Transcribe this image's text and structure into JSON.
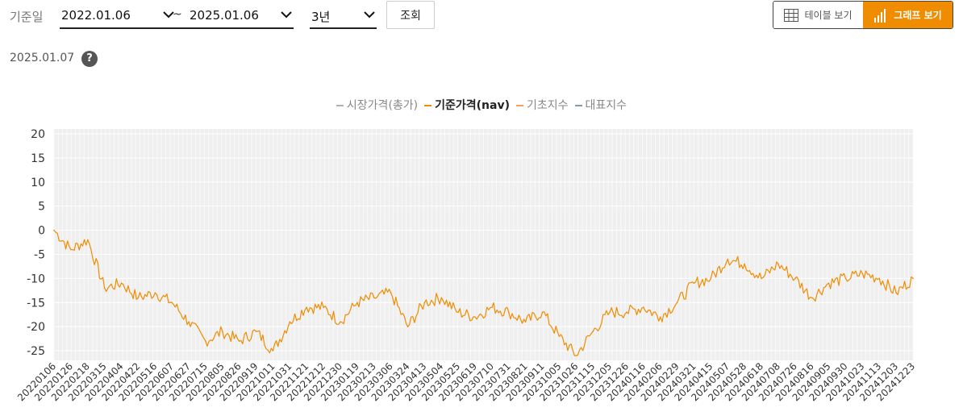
{
  "filter": {
    "base_date_label": "기준일",
    "start_date": "2022.01.06",
    "tilde": "~",
    "end_date": "2025.01.06",
    "period": "3년",
    "search_label": "조회"
  },
  "view_toggle": {
    "table_label": "테이블 보기",
    "graph_label": "그래프 보기",
    "active": "graph",
    "active_color": "#f08c00"
  },
  "as_of_date": "2025.01.07",
  "help_symbol": "?",
  "chart_data": {
    "type": "line",
    "title": "",
    "xlabel": "",
    "ylabel": "",
    "ylim": [
      -27,
      21
    ],
    "yticks": [
      20,
      15,
      10,
      5,
      0,
      -5,
      -10,
      -15,
      -20,
      -25
    ],
    "grid": true,
    "legend_position": "top-center",
    "legend": [
      {
        "name": "시장가격(총가)",
        "color": "#b0b0b0",
        "active": false
      },
      {
        "name": "기준가격(nav)",
        "color": "#f08c00",
        "active": true
      },
      {
        "name": "기초지수",
        "color": "#f0a060",
        "active": false
      },
      {
        "name": "대표지수",
        "color": "#8898a8",
        "active": false
      }
    ],
    "x_tick_labels": [
      "20220106",
      "20220126",
      "20220218",
      "20220315",
      "20220404",
      "20220422",
      "20220516",
      "20220607",
      "20220627",
      "20220715",
      "20220805",
      "20220826",
      "20220919",
      "20221011",
      "20221031",
      "20221121",
      "20221212",
      "20221230",
      "20230119",
      "20230213",
      "20230306",
      "20230324",
      "20230413",
      "20230504",
      "20230525",
      "20230619",
      "20230710",
      "20230731",
      "20230821",
      "20230911",
      "20231005",
      "20231026",
      "20231115",
      "20231205",
      "20231226",
      "20240116",
      "20240206",
      "20240229",
      "20240321",
      "20240415",
      "20240507",
      "20240528",
      "20240618",
      "20240708",
      "20240726",
      "20240816",
      "20240905",
      "20240930",
      "20241023",
      "20241113",
      "20241203",
      "20241223"
    ],
    "series": [
      {
        "name": "기준가격(nav)",
        "color": "#f08c00",
        "x": [
          "20220106",
          "20220126",
          "20220218",
          "20220315",
          "20220404",
          "20220422",
          "20220516",
          "20220607",
          "20220627",
          "20220715",
          "20220805",
          "20220826",
          "20220919",
          "20221011",
          "20221031",
          "20221121",
          "20221212",
          "20221230",
          "20230119",
          "20230213",
          "20230306",
          "20230324",
          "20230413",
          "20230504",
          "20230525",
          "20230619",
          "20230710",
          "20230731",
          "20230821",
          "20230911",
          "20231005",
          "20231026",
          "20231115",
          "20231205",
          "20231226",
          "20240116",
          "20240206",
          "20240229",
          "20240321",
          "20240415",
          "20240507",
          "20240528",
          "20240618",
          "20240708",
          "20240726",
          "20240816",
          "20240905",
          "20240930",
          "20241023",
          "20241113",
          "20241203",
          "20241223"
        ],
        "values": [
          0,
          -4,
          -2,
          -12,
          -11,
          -14,
          -13,
          -15,
          -19,
          -23,
          -21,
          -23,
          -21,
          -25,
          -19,
          -16,
          -16,
          -19,
          -15,
          -14,
          -13,
          -20,
          -15,
          -14,
          -17,
          -18,
          -16,
          -17,
          -19,
          -17,
          -22,
          -26,
          -21,
          -17,
          -17,
          -16,
          -18,
          -15,
          -11,
          -10,
          -6,
          -7,
          -10,
          -7,
          -10,
          -14,
          -11,
          -10,
          -9,
          -10,
          -13,
          -10
        ]
      }
    ]
  }
}
